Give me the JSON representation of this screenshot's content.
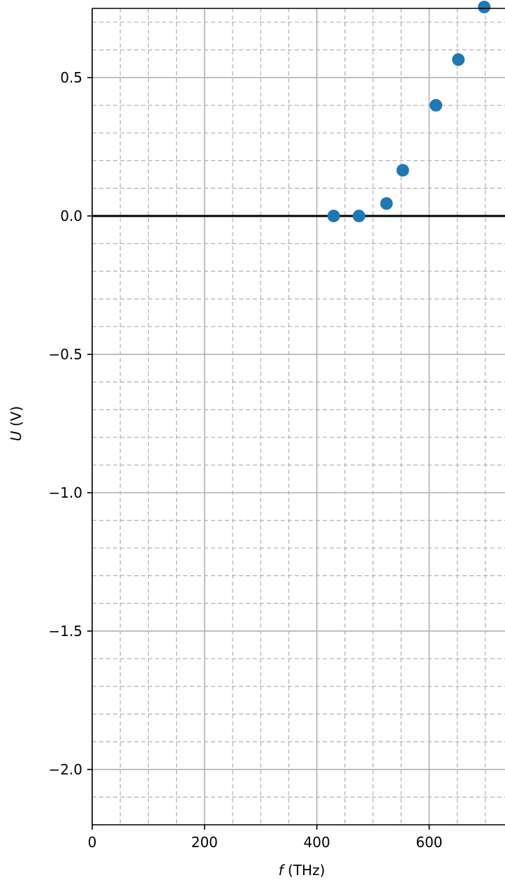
{
  "chart_data": {
    "type": "scatter",
    "title": "",
    "xlabel": {
      "var": "f",
      "unit": " (THz)"
    },
    "ylabel": {
      "var": "U",
      "unit": " (V)"
    },
    "xlim": [
      0,
      735
    ],
    "ylim": [
      -2.2,
      0.75
    ],
    "x_ticks": [
      0,
      200,
      400,
      600
    ],
    "x_tick_labels": [
      "0",
      "200",
      "400",
      "600"
    ],
    "y_ticks": [
      0.5,
      0.0,
      -0.5,
      -1.0,
      -1.5,
      -2.0
    ],
    "y_tick_labels": [
      "0.5",
      "0.0",
      "−0.5",
      "−1.0",
      "−1.5",
      "−2.0"
    ],
    "x_minor_step": 50,
    "y_minor_step": 0.1,
    "grid": {
      "major": "solid",
      "minor": "dashed"
    },
    "reference_line_y": 0,
    "marker_color": "#1f77b4",
    "points": {
      "x": [
        430,
        475,
        524,
        553,
        612,
        652,
        698
      ],
      "y": [
        0.0,
        0.0,
        0.045,
        0.165,
        0.4,
        0.565,
        0.755
      ]
    }
  }
}
